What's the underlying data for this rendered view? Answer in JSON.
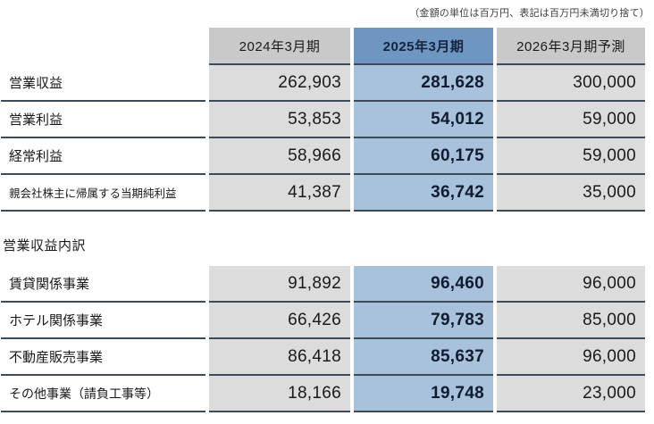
{
  "note": "（金額の単位は百万円、表記は百万円未満切り捨て）",
  "colors": {
    "header_gray": "#c9c9c9",
    "header_blue": "#6d96c1",
    "cell_gray": "#dcdcdc",
    "cell_blue": "#a8c2dc",
    "row_line": "#3d4b59"
  },
  "summary_table": {
    "headers": [
      "2024年3月期",
      "2025年3月期",
      "2026年3月期予測"
    ],
    "rows": [
      {
        "label": "営業収益",
        "values": [
          "262,903",
          "281,628",
          "300,000"
        ]
      },
      {
        "label": "営業利益",
        "values": [
          "53,853",
          "54,012",
          "59,000"
        ]
      },
      {
        "label": "経常利益",
        "values": [
          "58,966",
          "60,175",
          "59,000"
        ]
      },
      {
        "label": "親会社株主に帰属する当期純利益",
        "values": [
          "41,387",
          "36,742",
          "35,000"
        ]
      }
    ]
  },
  "section_title": "営業収益内訳",
  "breakdown_table": {
    "rows": [
      {
        "label": "賃貸関係事業",
        "values": [
          "91,892",
          "96,460",
          "96,000"
        ]
      },
      {
        "label": "ホテル関係事業",
        "values": [
          "66,426",
          "79,783",
          "85,000"
        ]
      },
      {
        "label": "不動産販売事業",
        "values": [
          "86,418",
          "85,637",
          "96,000"
        ]
      },
      {
        "label": "その他事業（請負工事等）",
        "values": [
          "18,166",
          "19,748",
          "23,000"
        ]
      }
    ]
  }
}
